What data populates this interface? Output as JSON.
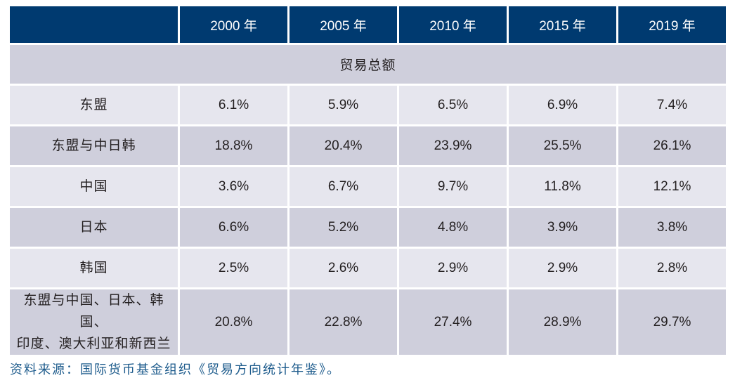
{
  "table": {
    "header": {
      "corner": "",
      "years": [
        "2000 年",
        "2005 年",
        "2010 年",
        "2015 年",
        "2019 年"
      ]
    },
    "section_title": "贸易总额",
    "rows": [
      {
        "label": "东盟",
        "values": [
          "6.1%",
          "5.9%",
          "6.5%",
          "6.9%",
          "7.4%"
        ]
      },
      {
        "label": "东盟与中日韩",
        "values": [
          "18.8%",
          "20.4%",
          "23.9%",
          "25.5%",
          "26.1%"
        ]
      },
      {
        "label": "中国",
        "values": [
          "3.6%",
          "6.7%",
          "9.7%",
          "11.8%",
          "12.1%"
        ]
      },
      {
        "label": "日本",
        "values": [
          "6.6%",
          "5.2%",
          "4.8%",
          "3.9%",
          "3.8%"
        ]
      },
      {
        "label": "韩国",
        "values": [
          "2.5%",
          "2.6%",
          "2.9%",
          "2.9%",
          "2.8%"
        ]
      },
      {
        "label_line1": "东盟与中国、日本、韩国、",
        "label_line2": "印度、澳大利亚和新西兰",
        "values": [
          "20.8%",
          "22.8%",
          "27.4%",
          "28.9%",
          "29.7%"
        ]
      }
    ]
  },
  "source_note": "资料来源：国际货币基金组织《贸易方向统计年鉴》。",
  "colors": {
    "header_bg": "#003a70",
    "header_text": "#ffffff",
    "row_light": "#e6e6ee",
    "row_dark": "#cfcfdc",
    "source_text": "#1d5b8c"
  }
}
